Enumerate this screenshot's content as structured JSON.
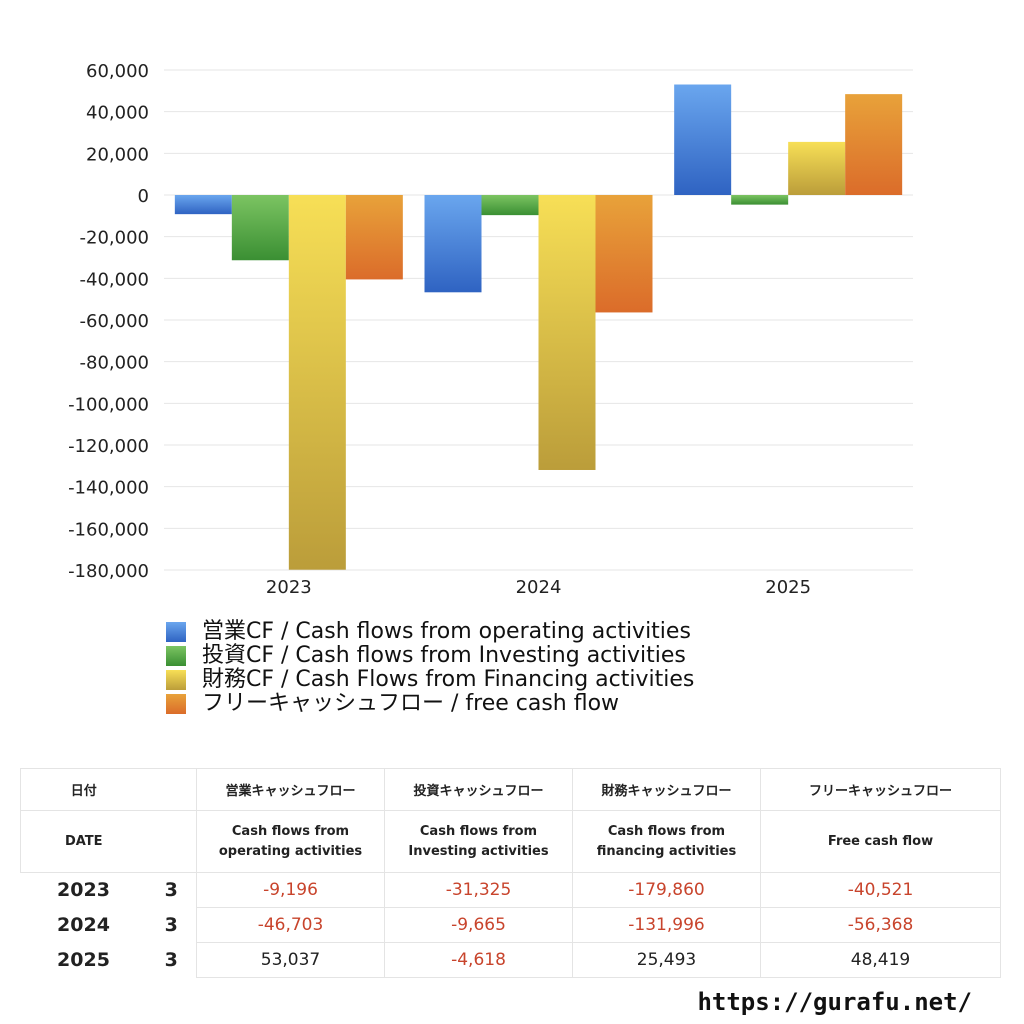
{
  "chart_data": {
    "type": "bar",
    "categories": [
      "2023",
      "2024",
      "2025"
    ],
    "series": [
      {
        "name": "営業CF / Cash flows from operating activities",
        "values": [
          -9196,
          -46703,
          53037
        ],
        "colors": [
          "#6aa6ee",
          "#2f63c2"
        ]
      },
      {
        "name": "投資CF / Cash flows from Investing activities",
        "values": [
          -31325,
          -9665,
          -4618
        ],
        "colors": [
          "#7cc462",
          "#3a8f33"
        ]
      },
      {
        "name": "財務CF / Cash Flows from Financing activities",
        "values": [
          -179860,
          -131996,
          25493
        ],
        "colors": [
          "#f7df56",
          "#bb9d3a"
        ]
      },
      {
        "name": "フリーキャッシュフロー / free cash flow",
        "values": [
          -40521,
          -56368,
          48419
        ],
        "colors": [
          "#e8a23a",
          "#db6c2a"
        ]
      }
    ],
    "yticks": [
      "60,000",
      "40,000",
      "20,000",
      "0",
      "-20,000",
      "-40,000",
      "-60,000",
      "-80,000",
      "-100,000",
      "-120,000",
      "-140,000",
      "-160,000",
      "-180,000"
    ],
    "ylim": [
      -180000,
      60000
    ],
    "grid": true,
    "legend_position": "bottom-left"
  },
  "table": {
    "headers_jp": [
      "日付",
      "営業キャッシュフロー",
      "投資キャッシュフロー",
      "財務キャッシュフロー",
      "フリーキャッシュフロー"
    ],
    "headers_en": [
      "DATE",
      "Cash flows from\noperating activities",
      "Cash flows from\nInvesting activities",
      "Cash flows from\nfinancing activities",
      "Free cash flow"
    ],
    "rows": [
      {
        "year": "2023",
        "month": "3",
        "values": [
          "-9,196",
          "-31,325",
          "-179,860",
          "-40,521"
        ]
      },
      {
        "year": "2024",
        "month": "3",
        "values": [
          "-46,703",
          "-9,665",
          "-131,996",
          "-56,368"
        ]
      },
      {
        "year": "2025",
        "month": "3",
        "values": [
          "53,037",
          "-4,618",
          "25,493",
          "48,419"
        ]
      }
    ]
  },
  "footer": {
    "url": "https://gurafu.net/"
  },
  "colors": {
    "negative": "#c8442c",
    "grid": "#e6e6e6"
  }
}
